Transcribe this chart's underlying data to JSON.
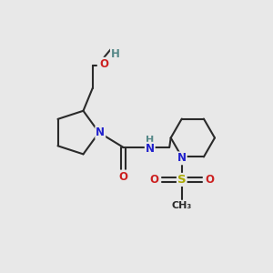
{
  "background_color": "#e8e8e8",
  "bond_color": "#2a2a2a",
  "N_color": "#2020cc",
  "O_color": "#cc2020",
  "S_color": "#aaaa00",
  "H_color": "#558888",
  "line_width": 1.5,
  "font_size": 8.5,
  "figsize": [
    3.0,
    3.0
  ],
  "dpi": 100,
  "xlim": [
    0,
    10
  ],
  "ylim": [
    0,
    10
  ]
}
